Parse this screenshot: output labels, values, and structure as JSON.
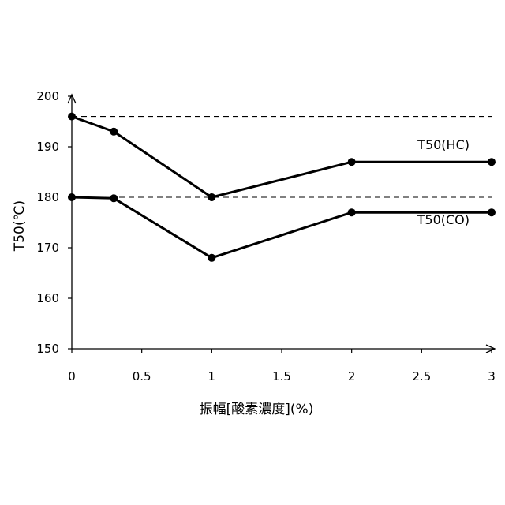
{
  "chart_data": {
    "type": "line",
    "title": "",
    "xlabel": "振幅[酸素濃度](%)",
    "ylabel": "T50(℃)",
    "xlim": [
      0,
      3
    ],
    "ylim": [
      150,
      200
    ],
    "x_ticks": [
      "0",
      "0.5",
      "1",
      "1.5",
      "2",
      "2.5",
      "3"
    ],
    "y_ticks": [
      "150",
      "160",
      "170",
      "180",
      "190",
      "200"
    ],
    "grid": false,
    "legend": "none",
    "series": [
      {
        "name": "T50(HC)",
        "x": [
          0,
          0.3,
          1,
          2,
          3
        ],
        "values": [
          196,
          193,
          180,
          187,
          187
        ]
      },
      {
        "name": "T50(CO)",
        "x": [
          0,
          0.3,
          1,
          2,
          3
        ],
        "values": [
          180,
          179.8,
          168,
          177,
          177
        ]
      }
    ],
    "reference_lines": [
      196,
      180
    ],
    "line_color": "#000000"
  }
}
